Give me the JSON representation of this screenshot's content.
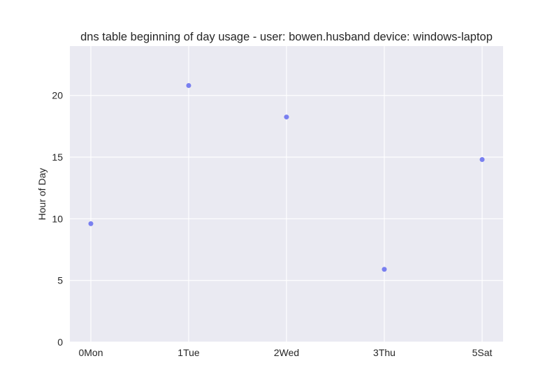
{
  "chart_data": {
    "type": "scatter",
    "title": "dns table beginning of day usage -  user: bowen.husband device: windows-laptop",
    "xlabel": "",
    "ylabel": "Hour of Day",
    "categories": [
      "0Mon",
      "1Tue",
      "2Wed",
      "3Thu",
      "5Sat"
    ],
    "values": [
      9.6,
      20.8,
      18.25,
      5.9,
      14.8
    ],
    "ylim": [
      0,
      24
    ],
    "yticks": [
      0,
      5,
      10,
      15,
      20
    ],
    "grid": true,
    "colors": {
      "plot_background": "#eaeaf2",
      "grid": "#ffffff",
      "point": "#6b73ef",
      "text": "#262626"
    }
  }
}
